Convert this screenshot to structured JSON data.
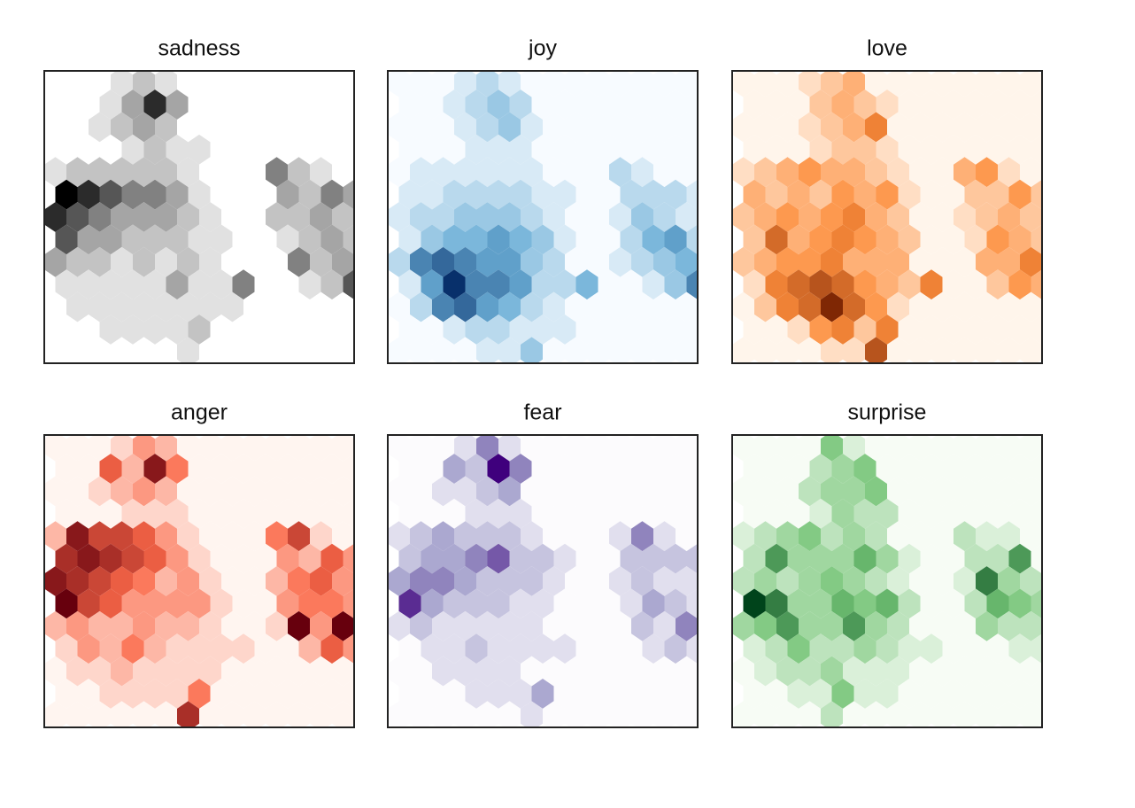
{
  "chart_data": [
    {
      "type": "hexbin",
      "title": "sadness",
      "colors": [
        "#ffffff",
        "#969696",
        "#000000"
      ],
      "values": [
        [
          0,
          0,
          0,
          1,
          2,
          1,
          0,
          0,
          0,
          0,
          0,
          0,
          0,
          0
        ],
        [
          0,
          0,
          1,
          3,
          6,
          3,
          0,
          0,
          0,
          0,
          0,
          0,
          0,
          0
        ],
        [
          0,
          0,
          1,
          2,
          3,
          2,
          0,
          0,
          0,
          0,
          0,
          0,
          0,
          0
        ],
        [
          0,
          0,
          0,
          1,
          2,
          1,
          1,
          0,
          0,
          0,
          0,
          0,
          0,
          0
        ],
        [
          1,
          2,
          2,
          2,
          2,
          2,
          1,
          0,
          0,
          0,
          4,
          2,
          1,
          0
        ],
        [
          7,
          6,
          5,
          4,
          4,
          3,
          1,
          0,
          0,
          0,
          3,
          2,
          4,
          3
        ],
        [
          6,
          5,
          4,
          3,
          3,
          3,
          2,
          1,
          0,
          0,
          2,
          2,
          3,
          2
        ],
        [
          5,
          3,
          3,
          2,
          2,
          2,
          1,
          1,
          0,
          0,
          1,
          2,
          3,
          2
        ],
        [
          3,
          2,
          2,
          1,
          2,
          1,
          2,
          1,
          0,
          0,
          0,
          4,
          2,
          3
        ],
        [
          1,
          1,
          1,
          1,
          1,
          3,
          1,
          1,
          4,
          0,
          0,
          1,
          2,
          5
        ],
        [
          0,
          1,
          1,
          1,
          1,
          1,
          1,
          1,
          1,
          0,
          0,
          0,
          0,
          0
        ],
        [
          0,
          0,
          1,
          1,
          1,
          1,
          2,
          0,
          0,
          0,
          0,
          0,
          0,
          0
        ],
        [
          0,
          0,
          0,
          0,
          0,
          0,
          1,
          0,
          0,
          0,
          0,
          0,
          0,
          0
        ]
      ]
    },
    {
      "type": "hexbin",
      "title": "joy",
      "colors": [
        "#f7fbff",
        "#6baed6",
        "#08306b"
      ],
      "values": [
        [
          0,
          0,
          0,
          1,
          2,
          1,
          0,
          0,
          0,
          0,
          0,
          0,
          0,
          0
        ],
        [
          0,
          0,
          1,
          2,
          3,
          2,
          0,
          0,
          0,
          0,
          0,
          0,
          0,
          0
        ],
        [
          0,
          0,
          0,
          1,
          2,
          3,
          1,
          0,
          0,
          0,
          0,
          0,
          0,
          0
        ],
        [
          0,
          0,
          0,
          1,
          1,
          1,
          0,
          0,
          0,
          0,
          0,
          0,
          0,
          0
        ],
        [
          0,
          1,
          1,
          1,
          1,
          1,
          1,
          0,
          0,
          0,
          2,
          1,
          0,
          0
        ],
        [
          1,
          1,
          2,
          2,
          2,
          2,
          1,
          1,
          0,
          0,
          2,
          2,
          2,
          1
        ],
        [
          1,
          2,
          2,
          3,
          3,
          3,
          2,
          1,
          0,
          0,
          1,
          3,
          2,
          1
        ],
        [
          1,
          3,
          4,
          4,
          5,
          4,
          3,
          1,
          0,
          0,
          2,
          4,
          5,
          2
        ],
        [
          2,
          6,
          7,
          6,
          5,
          5,
          3,
          2,
          0,
          0,
          1,
          2,
          3,
          4
        ],
        [
          1,
          5,
          9,
          6,
          6,
          5,
          2,
          2,
          4,
          0,
          0,
          1,
          3,
          6
        ],
        [
          0,
          2,
          6,
          7,
          5,
          4,
          2,
          1,
          0,
          0,
          0,
          0,
          0,
          0
        ],
        [
          0,
          0,
          1,
          2,
          2,
          1,
          1,
          1,
          0,
          0,
          0,
          0,
          0,
          0
        ],
        [
          0,
          0,
          0,
          0,
          1,
          1,
          3,
          0,
          0,
          0,
          0,
          0,
          0,
          0
        ]
      ]
    },
    {
      "type": "hexbin",
      "title": "love",
      "colors": [
        "#fff5eb",
        "#fd8d3c",
        "#7f2704"
      ],
      "values": [
        [
          0,
          0,
          0,
          1,
          2,
          3,
          0,
          0,
          0,
          0,
          0,
          0,
          0,
          0
        ],
        [
          0,
          0,
          0,
          2,
          3,
          2,
          1,
          0,
          0,
          0,
          0,
          0,
          0,
          0
        ],
        [
          0,
          0,
          0,
          1,
          2,
          3,
          5,
          0,
          0,
          0,
          0,
          0,
          0,
          0
        ],
        [
          0,
          0,
          0,
          1,
          2,
          2,
          1,
          0,
          0,
          0,
          0,
          0,
          0,
          0
        ],
        [
          1,
          2,
          3,
          4,
          3,
          3,
          2,
          1,
          0,
          0,
          3,
          4,
          1,
          0
        ],
        [
          3,
          2,
          3,
          2,
          4,
          3,
          4,
          1,
          0,
          0,
          2,
          2,
          4,
          2
        ],
        [
          2,
          3,
          4,
          3,
          4,
          5,
          3,
          2,
          0,
          0,
          1,
          2,
          3,
          2
        ],
        [
          2,
          6,
          3,
          4,
          5,
          4,
          3,
          2,
          0,
          0,
          1,
          4,
          3,
          2
        ],
        [
          2,
          3,
          4,
          4,
          5,
          3,
          3,
          3,
          0,
          0,
          0,
          3,
          3,
          5
        ],
        [
          1,
          5,
          6,
          7,
          6,
          4,
          3,
          2,
          5,
          0,
          0,
          2,
          4,
          3
        ],
        [
          0,
          2,
          5,
          6,
          9,
          6,
          4,
          1,
          0,
          0,
          0,
          0,
          0,
          0
        ],
        [
          0,
          0,
          1,
          4,
          5,
          2,
          5,
          0,
          0,
          0,
          0,
          0,
          0,
          0
        ],
        [
          0,
          0,
          0,
          0,
          1,
          1,
          7,
          0,
          0,
          0,
          0,
          0,
          0,
          0
        ]
      ]
    },
    {
      "type": "hexbin",
      "title": "anger",
      "colors": [
        "#fff5f0",
        "#fb6a4a",
        "#67000d"
      ],
      "values": [
        [
          0,
          0,
          0,
          1,
          3,
          2,
          0,
          0,
          0,
          0,
          0,
          0,
          0,
          0
        ],
        [
          0,
          0,
          5,
          2,
          8,
          4,
          0,
          0,
          0,
          0,
          0,
          0,
          0,
          0
        ],
        [
          0,
          0,
          1,
          2,
          3,
          2,
          0,
          0,
          0,
          0,
          0,
          0,
          0,
          0
        ],
        [
          0,
          0,
          0,
          1,
          1,
          1,
          0,
          0,
          0,
          0,
          0,
          0,
          0,
          0
        ],
        [
          2,
          8,
          6,
          6,
          5,
          3,
          1,
          0,
          0,
          0,
          4,
          6,
          1,
          0
        ],
        [
          7,
          8,
          7,
          6,
          5,
          3,
          1,
          0,
          0,
          0,
          3,
          2,
          5,
          3
        ],
        [
          8,
          7,
          6,
          5,
          4,
          2,
          3,
          1,
          0,
          0,
          2,
          4,
          5,
          3
        ],
        [
          9,
          6,
          5,
          3,
          3,
          3,
          3,
          1,
          0,
          0,
          3,
          4,
          4,
          3
        ],
        [
          2,
          3,
          2,
          2,
          3,
          2,
          2,
          1,
          0,
          0,
          1,
          9,
          3,
          9
        ],
        [
          1,
          3,
          2,
          4,
          2,
          1,
          1,
          1,
          1,
          0,
          0,
          2,
          5,
          3
        ],
        [
          0,
          1,
          1,
          2,
          1,
          1,
          1,
          1,
          0,
          0,
          0,
          0,
          0,
          0
        ],
        [
          0,
          0,
          1,
          1,
          1,
          1,
          4,
          0,
          0,
          0,
          0,
          0,
          0,
          0
        ],
        [
          0,
          0,
          0,
          0,
          0,
          0,
          7,
          0,
          0,
          0,
          0,
          0,
          0,
          0
        ]
      ]
    },
    {
      "type": "hexbin",
      "title": "fear",
      "colors": [
        "#fcfbfd",
        "#9e9ac8",
        "#3f007d"
      ],
      "values": [
        [
          0,
          0,
          0,
          1,
          4,
          1,
          0,
          0,
          0,
          0,
          0,
          0,
          0,
          0
        ],
        [
          0,
          0,
          3,
          2,
          7,
          4,
          0,
          0,
          0,
          0,
          0,
          0,
          0,
          0
        ],
        [
          0,
          0,
          1,
          1,
          2,
          3,
          0,
          0,
          0,
          0,
          0,
          0,
          0,
          0
        ],
        [
          0,
          0,
          0,
          1,
          1,
          1,
          0,
          0,
          0,
          0,
          0,
          0,
          0,
          0
        ],
        [
          1,
          2,
          3,
          2,
          2,
          2,
          1,
          0,
          0,
          0,
          1,
          4,
          1,
          0
        ],
        [
          2,
          3,
          3,
          4,
          5,
          2,
          2,
          1,
          0,
          0,
          2,
          2,
          2,
          2
        ],
        [
          3,
          4,
          4,
          3,
          2,
          2,
          2,
          1,
          0,
          0,
          1,
          2,
          1,
          1
        ],
        [
          6,
          3,
          2,
          2,
          2,
          1,
          1,
          0,
          0,
          0,
          1,
          3,
          2,
          1
        ],
        [
          1,
          2,
          1,
          1,
          1,
          1,
          1,
          0,
          0,
          0,
          0,
          2,
          1,
          4
        ],
        [
          0,
          1,
          1,
          2,
          1,
          1,
          1,
          1,
          0,
          0,
          0,
          1,
          2,
          1
        ],
        [
          0,
          0,
          1,
          1,
          1,
          1,
          0,
          0,
          0,
          0,
          0,
          0,
          0,
          0
        ],
        [
          0,
          0,
          0,
          1,
          1,
          1,
          3,
          0,
          0,
          0,
          0,
          0,
          0,
          0
        ],
        [
          0,
          0,
          0,
          0,
          0,
          0,
          1,
          0,
          0,
          0,
          0,
          0,
          0,
          0
        ]
      ]
    },
    {
      "type": "hexbin",
      "title": "surprise",
      "colors": [
        "#f7fcf5",
        "#74c476",
        "#00441b"
      ],
      "values": [
        [
          0,
          0,
          0,
          0,
          4,
          1,
          0,
          0,
          0,
          0,
          0,
          0,
          0,
          0
        ],
        [
          0,
          0,
          0,
          2,
          3,
          4,
          0,
          0,
          0,
          0,
          0,
          0,
          0,
          0
        ],
        [
          0,
          0,
          0,
          2,
          3,
          3,
          4,
          0,
          0,
          0,
          0,
          0,
          0,
          0
        ],
        [
          0,
          0,
          0,
          1,
          3,
          2,
          2,
          0,
          0,
          0,
          0,
          0,
          0,
          0
        ],
        [
          1,
          2,
          3,
          4,
          2,
          3,
          2,
          0,
          0,
          0,
          2,
          1,
          1,
          0
        ],
        [
          2,
          6,
          3,
          3,
          3,
          5,
          3,
          1,
          0,
          0,
          2,
          2,
          6,
          0
        ],
        [
          2,
          3,
          2,
          3,
          4,
          3,
          2,
          1,
          0,
          0,
          1,
          7,
          3,
          2
        ],
        [
          9,
          7,
          3,
          3,
          5,
          4,
          5,
          2,
          0,
          0,
          2,
          5,
          4,
          3
        ],
        [
          3,
          4,
          6,
          3,
          3,
          6,
          3,
          2,
          0,
          0,
          0,
          3,
          2,
          2
        ],
        [
          1,
          2,
          4,
          2,
          2,
          3,
          2,
          1,
          1,
          0,
          0,
          0,
          1,
          1
        ],
        [
          0,
          1,
          2,
          2,
          3,
          1,
          1,
          1,
          0,
          0,
          0,
          0,
          0,
          0
        ],
        [
          0,
          0,
          1,
          1,
          4,
          1,
          1,
          0,
          0,
          0,
          0,
          0,
          0,
          0
        ],
        [
          0,
          0,
          0,
          0,
          2,
          0,
          0,
          0,
          0,
          0,
          0,
          0,
          0,
          0
        ]
      ]
    }
  ]
}
